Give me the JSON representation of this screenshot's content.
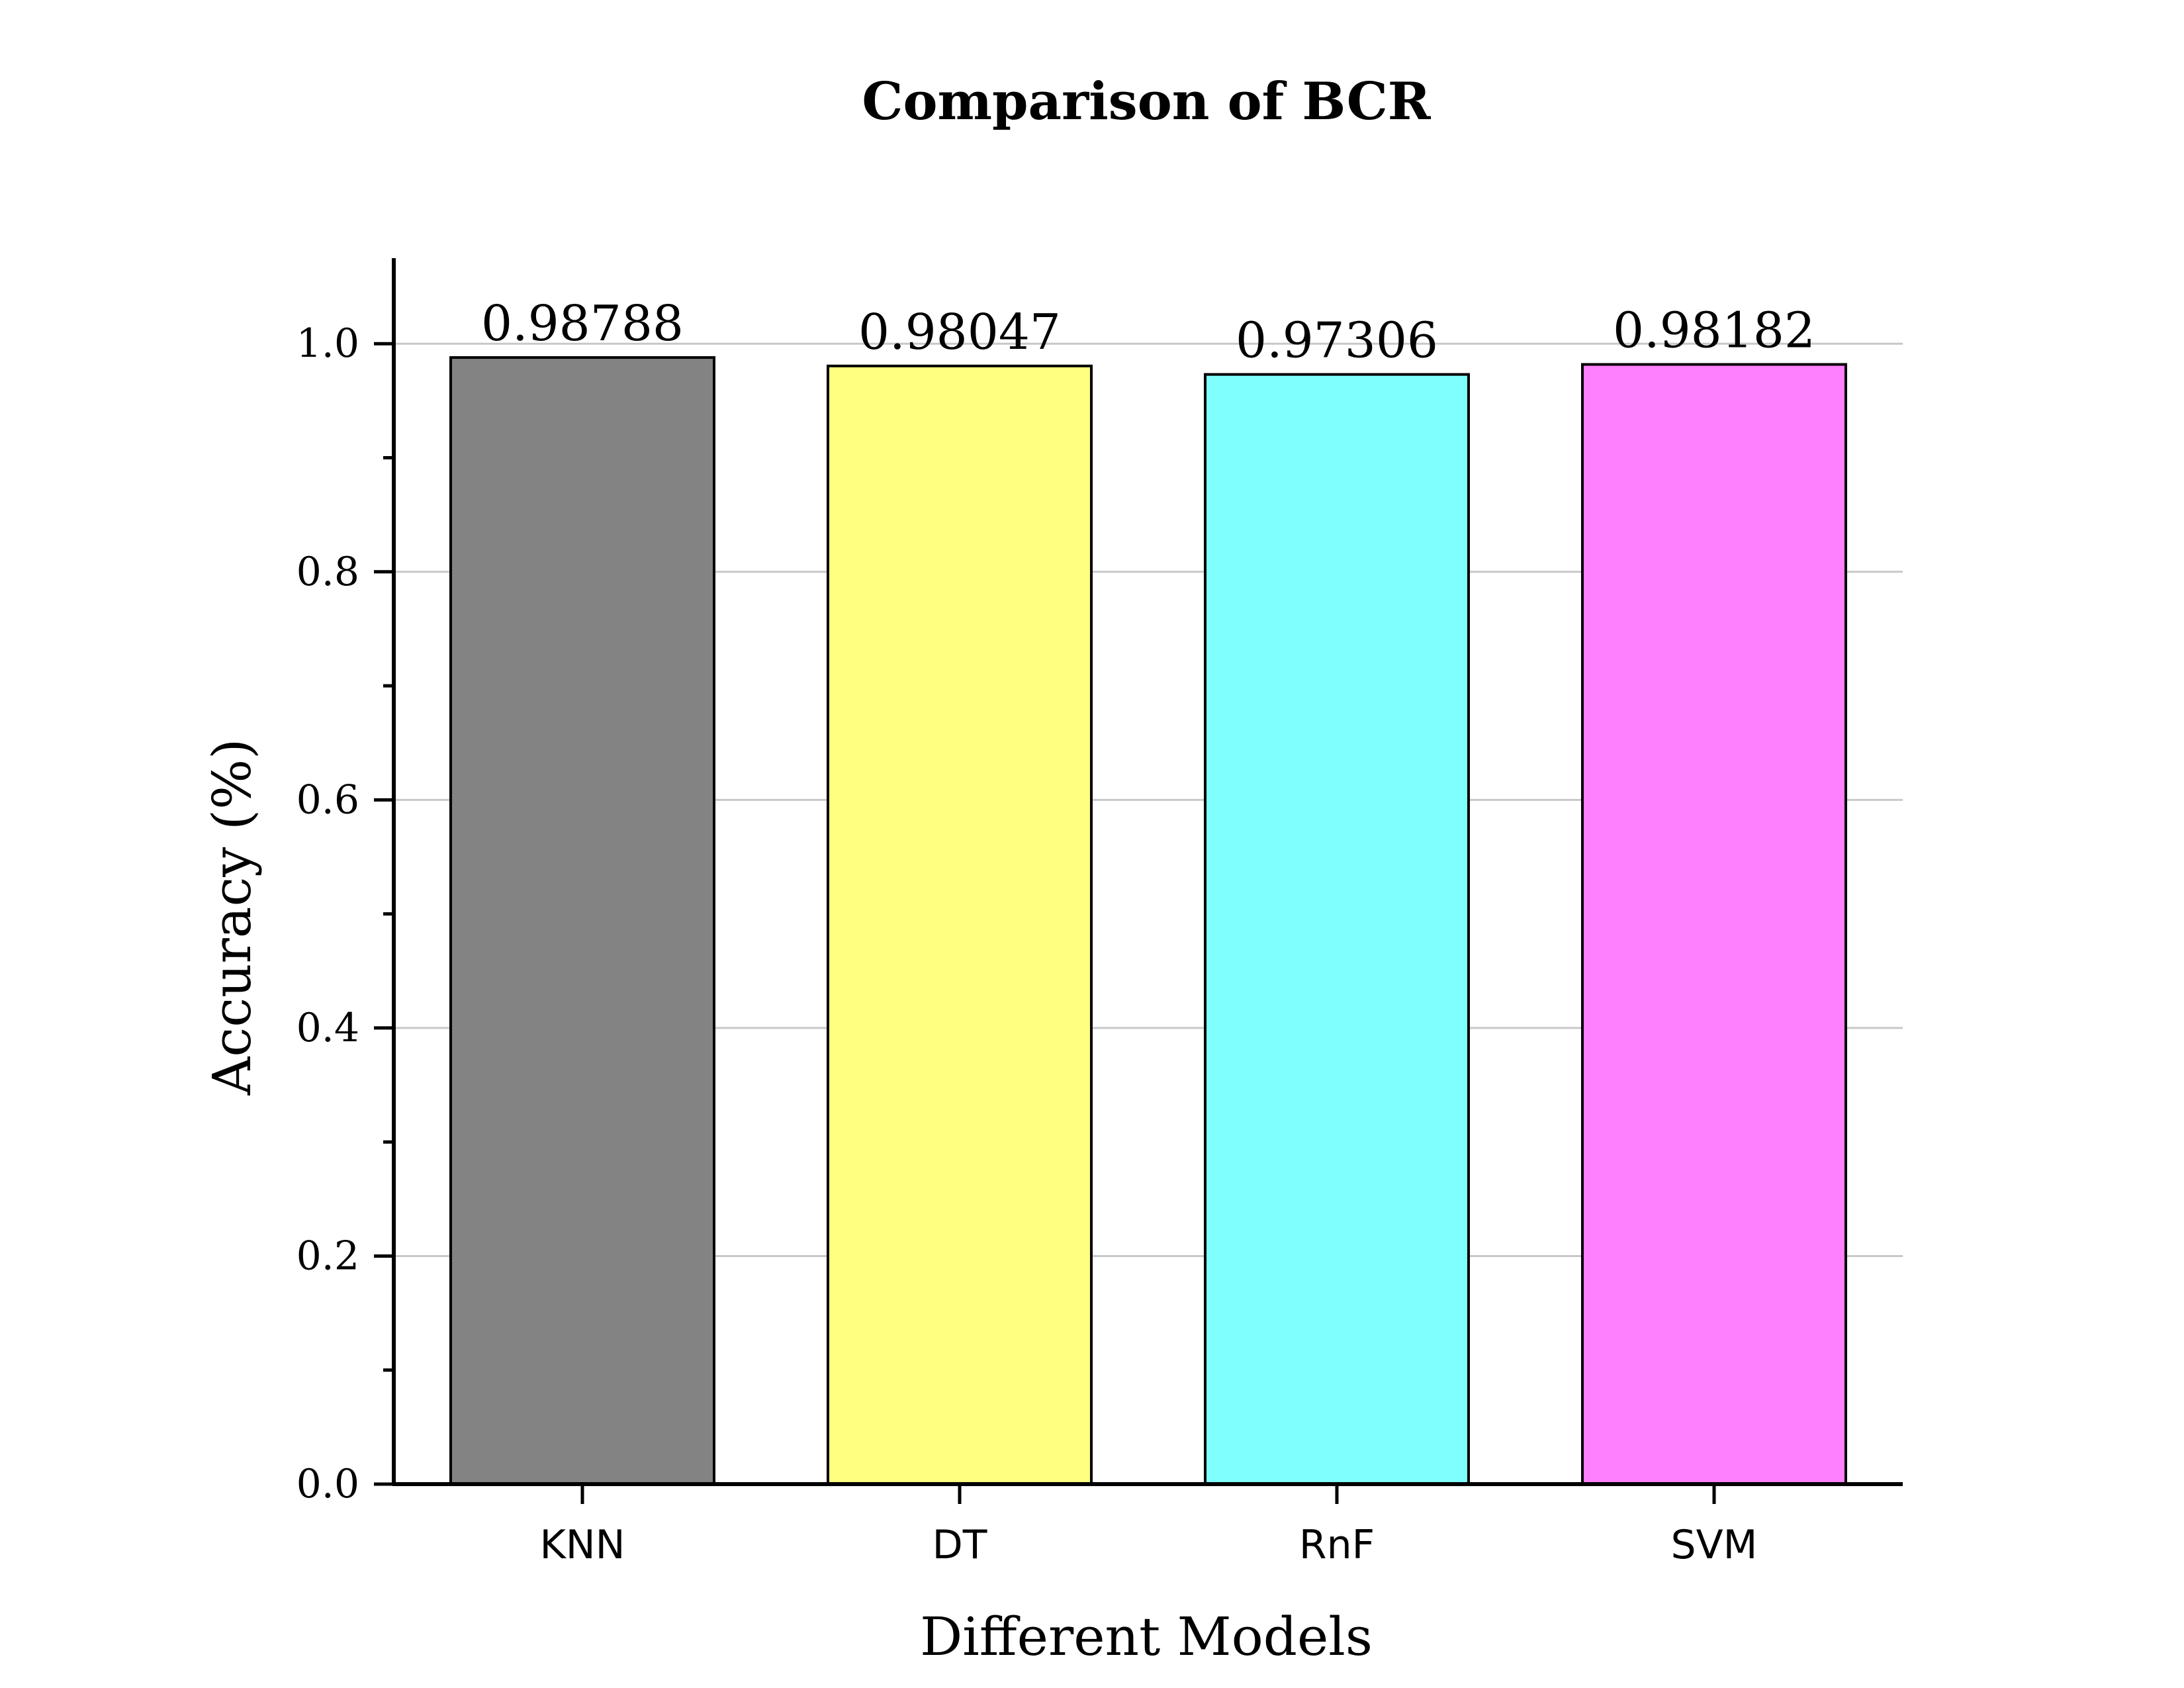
{
  "chart_data": {
    "type": "bar",
    "title": "Comparison of  BCR",
    "xlabel": "Different Models",
    "ylabel": "Accuracy (%)",
    "categories": [
      "KNN",
      "DT",
      "RnF",
      "SVM"
    ],
    "values": [
      0.98788,
      0.98047,
      0.97306,
      0.98182
    ],
    "data_labels": [
      "0.98788",
      "0.98047",
      "0.97306",
      "0.98182"
    ],
    "colors": [
      "#838383",
      "#FFFF80",
      "#80FFFF",
      "#FF80FF"
    ],
    "yticks": [
      0.0,
      0.2,
      0.4,
      0.6,
      0.8,
      1.0
    ],
    "ytick_labels": [
      "0.0",
      "0.2",
      "0.4",
      "0.6",
      "0.8",
      "1.0"
    ],
    "ylim": [
      0,
      1.075
    ],
    "grid": "horizontal",
    "legend": "none"
  }
}
